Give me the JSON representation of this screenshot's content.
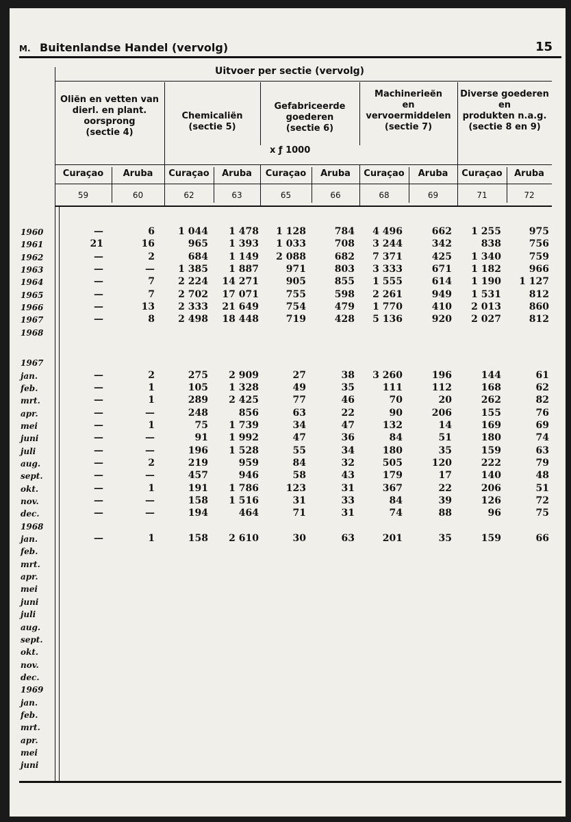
{
  "header": {
    "section": "M.",
    "title": "Buitenlandse Handel (vervolg)",
    "page": "15"
  },
  "table": {
    "title": "Uitvoer per sectie (vervolg)",
    "groups": [
      {
        "label": [
          "Oliën en vetten van",
          "dierl. en plant.",
          "oorsprong",
          "(sectie 4)"
        ]
      },
      {
        "label": [
          "Chemicaliën",
          "(sectie 5)"
        ]
      },
      {
        "label": [
          "Gefabriceerde",
          "goederen",
          "(sectie 6)"
        ]
      },
      {
        "label": [
          "Machinerieën",
          "en",
          "vervoermiddelen",
          "(sectie 7)"
        ]
      },
      {
        "label": [
          "Diverse goederen",
          "en",
          "produkten n.a.g.",
          "(sectie 8 en 9)"
        ]
      }
    ],
    "unit": "x ƒ 1000",
    "columns": [
      "Curaçao",
      "Aruba",
      "Curaçao",
      "Aruba",
      "Curaçao",
      "Aruba",
      "Curaçao",
      "Aruba",
      "Curaçao",
      "Aruba"
    ],
    "column_numbers": [
      "59",
      "60",
      "62",
      "63",
      "65",
      "66",
      "68",
      "69",
      "71",
      "72"
    ],
    "blocks": [
      {
        "rows": [
          {
            "label": "1960",
            "values": [
              "—",
              "6",
              "1 044",
              "1 478",
              "1 128",
              "784",
              "4 496",
              "662",
              "1 255",
              "975"
            ]
          },
          {
            "label": "1961",
            "values": [
              "21",
              "16",
              "965",
              "1 393",
              "1 033",
              "708",
              "3 244",
              "342",
              "838",
              "756"
            ]
          },
          {
            "label": "1962",
            "values": [
              "—",
              "2",
              "684",
              "1 149",
              "2 088",
              "682",
              "7 371",
              "425",
              "1 340",
              "759"
            ]
          },
          {
            "label": "1963",
            "values": [
              "—",
              "—",
              "1 385",
              "1 887",
              "971",
              "803",
              "3 333",
              "671",
              "1 182",
              "966"
            ]
          },
          {
            "label": "1964",
            "values": [
              "—",
              "7",
              "2 224",
              "14 271",
              "905",
              "855",
              "1 555",
              "614",
              "1 190",
              "1 127"
            ]
          },
          {
            "label": "1965",
            "values": [
              "—",
              "7",
              "2 702",
              "17 071",
              "755",
              "598",
              "2 261",
              "949",
              "1 531",
              "812"
            ]
          },
          {
            "label": "1966",
            "values": [
              "—",
              "13",
              "2 333",
              "21 649",
              "754",
              "479",
              "1 770",
              "410",
              "2 013",
              "860"
            ]
          },
          {
            "label": "1967",
            "values": [
              "—",
              "8",
              "2 498",
              "18 448",
              "719",
              "428",
              "5 136",
              "920",
              "2 027",
              "812"
            ]
          },
          {
            "label": "1968"
          }
        ]
      },
      {
        "rows": [
          {
            "label": "1967"
          },
          {
            "label": "jan.",
            "values": [
              "—",
              "2",
              "275",
              "2 909",
              "27",
              "38",
              "3 260",
              "196",
              "144",
              "61"
            ]
          },
          {
            "label": "feb.",
            "values": [
              "—",
              "1",
              "105",
              "1 328",
              "49",
              "35",
              "111",
              "112",
              "168",
              "62"
            ]
          },
          {
            "label": "mrt.",
            "values": [
              "—",
              "1",
              "289",
              "2 425",
              "77",
              "46",
              "70",
              "20",
              "262",
              "82"
            ]
          },
          {
            "label": "apr.",
            "values": [
              "—",
              "—",
              "248",
              "856",
              "63",
              "22",
              "90",
              "206",
              "155",
              "76"
            ]
          },
          {
            "label": "mei",
            "values": [
              "—",
              "1",
              "75",
              "1 739",
              "34",
              "47",
              "132",
              "14",
              "169",
              "69"
            ]
          },
          {
            "label": "juni",
            "values": [
              "—",
              "—",
              "91",
              "1 992",
              "47",
              "36",
              "84",
              "51",
              "180",
              "74"
            ]
          },
          {
            "label": "juli",
            "values": [
              "—",
              "—",
              "196",
              "1 528",
              "55",
              "34",
              "180",
              "35",
              "159",
              "63"
            ]
          },
          {
            "label": "aug.",
            "values": [
              "—",
              "2",
              "219",
              "959",
              "84",
              "32",
              "505",
              "120",
              "222",
              "79"
            ]
          },
          {
            "label": "sept.",
            "values": [
              "—",
              "—",
              "457",
              "946",
              "58",
              "43",
              "179",
              "17",
              "140",
              "48"
            ]
          },
          {
            "label": "okt.",
            "values": [
              "—",
              "1",
              "191",
              "1 786",
              "123",
              "31",
              "367",
              "22",
              "206",
              "51"
            ]
          },
          {
            "label": "nov.",
            "values": [
              "—",
              "—",
              "158",
              "1 516",
              "31",
              "33",
              "84",
              "39",
              "126",
              "72"
            ]
          },
          {
            "label": "dec.",
            "values": [
              "—",
              "—",
              "194",
              "464",
              "71",
              "31",
              "74",
              "88",
              "96",
              "75"
            ]
          },
          {
            "label": "1968"
          },
          {
            "label": "jan.",
            "values": [
              "—",
              "1",
              "158",
              "2 610",
              "30",
              "63",
              "201",
              "35",
              "159",
              "66"
            ]
          },
          {
            "label": "feb."
          },
          {
            "label": "mrt."
          },
          {
            "label": "apr."
          },
          {
            "label": "mei"
          },
          {
            "label": "juni"
          },
          {
            "label": "juli"
          },
          {
            "label": "aug."
          },
          {
            "label": "sept."
          },
          {
            "label": "okt."
          },
          {
            "label": "nov."
          },
          {
            "label": "dec."
          },
          {
            "label": "1969"
          },
          {
            "label": "jan."
          },
          {
            "label": "feb."
          },
          {
            "label": "mrt."
          },
          {
            "label": "apr."
          },
          {
            "label": "mei"
          },
          {
            "label": "juni"
          }
        ]
      }
    ]
  }
}
